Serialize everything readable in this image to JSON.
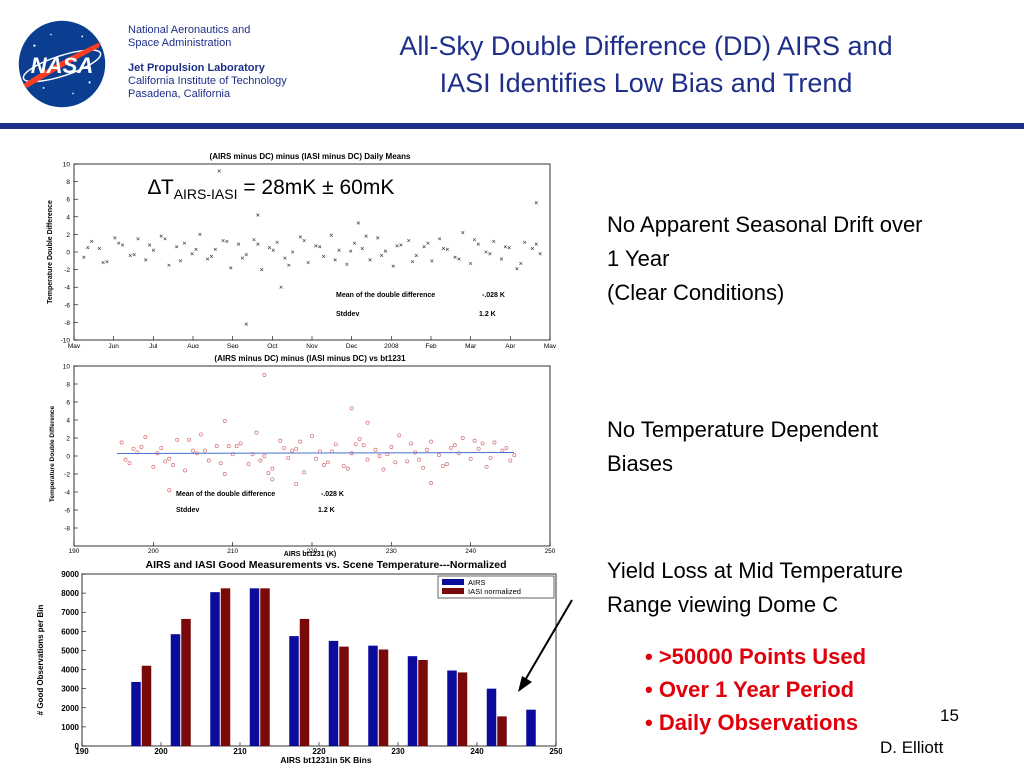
{
  "header": {
    "org_line1": "National Aeronautics and",
    "org_line2": "Space Administration",
    "lab_line1": "Jet Propulsion Laboratory",
    "lab_line2": "California Institute of Technology",
    "lab_line3": "Pasadena, California",
    "logo_text": "NASA",
    "title_line1": "All-Sky Double Difference (DD) AIRS and",
    "title_line2": "IASI Identifies Low Bias and Trend"
  },
  "delta_t": {
    "symbol": "∆T",
    "subscript": "AIRS-IASI",
    "value": " = 28mK ± 60mK"
  },
  "notes": {
    "seasonal_line1": "No Apparent Seasonal Drift over",
    "seasonal_line2": "1 Year",
    "seasonal_line3": "(Clear Conditions)",
    "temp_line1": "No Temperature Dependent",
    "temp_line2": "Biases",
    "yield_line1": "Yield Loss at Mid Temperature",
    "yield_line2": "Range viewing Dome C"
  },
  "bullets": [
    "• >50000 Points Used",
    "• Over 1 Year Period",
    "• Daily Observations"
  ],
  "page_number": "15",
  "author": "D. Elliott",
  "colors": {
    "nasa_blue": "#1e2f8a",
    "bullet_red": "#e0000b",
    "airs_bar": "#0b0b9c",
    "iasi_bar": "#7a0a0a",
    "scatter_red": "#d47070"
  },
  "chart_data": [
    {
      "type": "scatter",
      "title": "(AIRS minus DC) minus (IASI minus DC) Daily Means",
      "ylabel": "Temperature Double Difference",
      "ylim": [
        -10,
        10
      ],
      "yticks": [
        "10",
        "8",
        "6",
        "4",
        "2",
        "0",
        "-2",
        "-4",
        "-6",
        "-8",
        "-10"
      ],
      "xtick_labels": [
        "May",
        "Jun",
        "Jul",
        "Aug",
        "Sep",
        "Oct",
        "Nov",
        "Dec",
        "2008",
        "Feb",
        "Mar",
        "Apr",
        "May"
      ],
      "annotations": [
        {
          "label": "Mean of the double difference",
          "value": "-.028 K"
        },
        {
          "label": "Stddev",
          "value": "1.2 K"
        }
      ],
      "x": [
        0.1,
        0.3,
        0.5,
        0.7,
        0.9,
        1.1,
        1.3,
        1.5,
        1.7,
        1.9,
        2.1,
        2.3,
        2.5,
        2.7,
        2.9,
        3.1,
        3.3,
        3.5,
        3.7,
        3.9,
        4.1,
        4.3,
        4.5,
        4.7,
        4.9,
        5.1,
        5.3,
        5.5,
        5.7,
        5.9,
        6.1,
        6.3,
        6.5,
        6.7,
        6.9,
        7.1,
        7.3,
        7.5,
        7.7,
        7.9,
        8.1,
        8.3,
        8.5,
        8.7,
        8.9,
        9.1,
        9.3,
        9.5,
        9.7,
        9.9,
        10.1,
        10.3,
        10.5,
        10.7,
        10.9,
        11.1,
        11.3,
        11.5,
        11.7,
        11.9,
        0.2,
        0.6,
        1.0,
        1.4,
        1.8,
        2.2,
        2.6,
        3.0,
        3.4,
        3.8,
        4.2,
        4.6,
        5.0,
        5.4,
        5.8,
        6.2,
        6.6,
        7.0,
        7.4,
        7.8,
        8.2,
        8.6,
        9.0,
        9.4,
        9.8,
        10.2,
        10.6,
        11.0,
        11.4,
        11.8,
        4.6,
        4.3,
        5.2,
        11.8,
        3.6,
        7.2
      ],
      "y": [
        -0.6,
        1.2,
        0.4,
        -1.1,
        1.6,
        0.8,
        -0.4,
        1.5,
        -0.9,
        0.2,
        1.8,
        -1.5,
        0.6,
        1.0,
        -0.2,
        2.0,
        -0.8,
        0.3,
        1.3,
        -1.8,
        0.9,
        -0.3,
        1.4,
        -2.0,
        0.5,
        1.1,
        -0.7,
        0.0,
        1.7,
        -1.2,
        0.7,
        -0.5,
        1.9,
        0.2,
        -1.4,
        1.0,
        0.4,
        -0.9,
        1.6,
        0.1,
        -1.6,
        0.8,
        1.3,
        -0.4,
        0.6,
        -1.0,
        1.5,
        0.3,
        -0.6,
        2.2,
        -1.3,
        0.9,
        0.0,
        1.2,
        -0.8,
        0.5,
        -1.9,
        1.1,
        0.4,
        -0.2,
        0.5,
        -1.2,
        1.0,
        -0.3,
        0.8,
        1.5,
        -1.0,
        0.3,
        -0.5,
        1.2,
        -0.7,
        0.9,
        0.2,
        -1.5,
        1.3,
        0.6,
        -0.9,
        0.1,
        1.8,
        -0.4,
        0.7,
        -1.1,
        1.0,
        0.4,
        -0.8,
        1.4,
        -0.2,
        0.6,
        -1.3,
        0.9,
        4.2,
        -8.2,
        -4.0,
        5.6,
        9.2,
        3.3
      ]
    },
    {
      "type": "scatter",
      "title": "(AIRS minus DC) minus (IASI minus DC) vs bt1231",
      "xlabel": "AIRS bt1231 (K)",
      "ylabel": "Temperature Double Difference",
      "xlim": [
        190,
        250
      ],
      "ylim": [
        -10,
        10
      ],
      "xticks": [
        190,
        200,
        210,
        220,
        230,
        240,
        250
      ],
      "yticks": [
        "10",
        "8",
        "6",
        "4",
        "2",
        "0",
        "-2",
        "-4",
        "-6",
        "-8"
      ],
      "annotations": [
        {
          "label": "Mean of the double difference",
          "value": "-.028 K"
        },
        {
          "label": "Stddev",
          "value": "1.2 K"
        }
      ],
      "x": [
        196,
        197,
        198,
        199,
        200,
        201,
        202,
        203,
        204,
        205,
        206,
        207,
        208,
        209,
        210,
        211,
        212,
        213,
        214,
        215,
        216,
        217,
        218,
        219,
        220,
        221,
        222,
        223,
        224,
        225,
        226,
        227,
        228,
        229,
        230,
        231,
        232,
        233,
        234,
        235,
        236,
        237,
        238,
        239,
        240,
        241,
        242,
        243,
        244,
        245,
        196.5,
        198.5,
        200.5,
        202.5,
        204.5,
        206.5,
        208.5,
        210.5,
        212.5,
        214.5,
        216.5,
        218.5,
        220.5,
        222.5,
        224.5,
        226.5,
        228.5,
        230.5,
        232.5,
        234.5,
        236.5,
        238.5,
        240.5,
        242.5,
        244.5,
        197.5,
        201.5,
        205.5,
        209.5,
        213.5,
        217.5,
        221.5,
        225.5,
        229.5,
        233.5,
        237.5,
        241.5,
        245.5,
        202,
        209,
        215,
        218,
        227,
        235,
        225,
        214
      ],
      "y": [
        1.5,
        -0.8,
        0.4,
        2.1,
        -1.2,
        0.9,
        -0.3,
        1.8,
        -1.6,
        0.6,
        2.4,
        -0.5,
        1.1,
        -2.0,
        0.2,
        1.4,
        -0.9,
        2.6,
        0.0,
        -1.4,
        1.7,
        -0.2,
        0.8,
        -1.8,
        2.2,
        0.5,
        -0.7,
        1.3,
        -1.1,
        0.3,
        1.9,
        -0.4,
        0.7,
        -1.5,
        1.0,
        2.3,
        -0.6,
        0.4,
        -1.3,
        1.6,
        0.1,
        -0.9,
        1.2,
        2.0,
        -0.3,
        0.8,
        -1.2,
        1.5,
        0.6,
        -0.5,
        -0.4,
        1.0,
        0.3,
        -1.0,
        1.8,
        0.6,
        -0.8,
        1.1,
        0.2,
        -1.9,
        0.9,
        1.6,
        -0.3,
        0.5,
        -1.4,
        1.2,
        0.0,
        -0.7,
        1.4,
        0.7,
        -1.1,
        0.3,
        1.7,
        -0.2,
        0.9,
        0.8,
        -0.6,
        0.3,
        1.1,
        -0.5,
        0.6,
        -1.0,
        1.3,
        0.2,
        -0.4,
        0.9,
        1.4,
        0.1,
        -3.8,
        3.9,
        -2.6,
        -3.1,
        3.7,
        -3.0,
        5.3,
        9.0
      ]
    },
    {
      "type": "bar",
      "title": "AIRS and IASI Good Measurements vs. Scene Temperature---Normalized",
      "xlabel": "AIRS bt1231in 5K Bins",
      "ylabel": "# Good Observations per Bin",
      "xlim": [
        190,
        250
      ],
      "ylim": [
        0,
        9000
      ],
      "xticks": [
        190,
        200,
        210,
        220,
        230,
        240,
        250
      ],
      "yticks": [
        0,
        1000,
        2000,
        3000,
        4000,
        5000,
        6000,
        7000,
        8000,
        9000
      ],
      "bin_centers": [
        197.5,
        202.5,
        207.5,
        212.5,
        217.5,
        222.5,
        227.5,
        232.5,
        237.5,
        242.5,
        247.5
      ],
      "series": [
        {
          "name": "AIRS",
          "values": [
            3350,
            5850,
            8050,
            8250,
            5750,
            5500,
            5250,
            4700,
            3950,
            3000,
            1900
          ]
        },
        {
          "name": "IASI normalized",
          "values": [
            4200,
            6650,
            8250,
            8250,
            6650,
            5200,
            5050,
            4500,
            3850,
            1550,
            0
          ]
        }
      ]
    }
  ]
}
